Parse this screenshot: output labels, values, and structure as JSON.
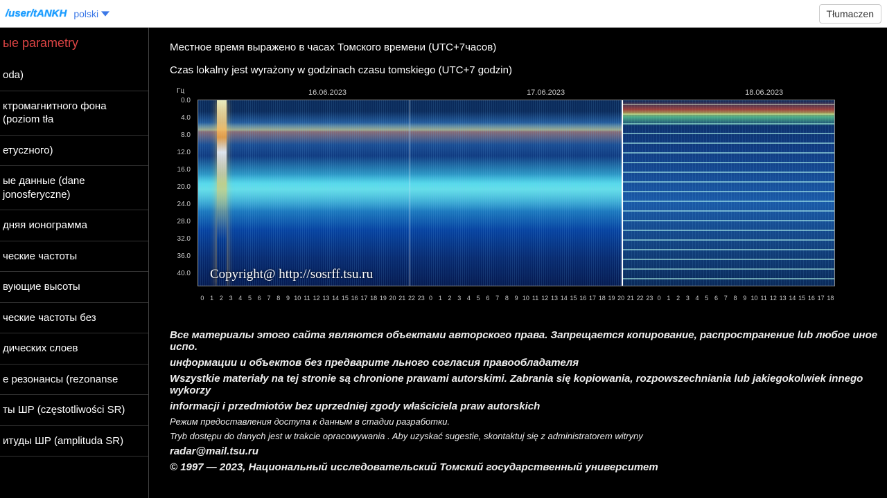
{
  "topbar": {
    "url_fragment": "/user/tANKH",
    "language": "polski",
    "translate_button": "Tłumaczen"
  },
  "sidebar": {
    "title": "ые parametry",
    "items": [
      "oda)",
      "ктромагнитного фона (poziom tła",
      "етуczного)",
      "ые данные (dane jonosferyczne)",
      "дняя ионограмма",
      "ческие частоты",
      "вующие высоты",
      "ческие частоты без",
      "дических слоев",
      "e резонансы (rezonanse",
      "ты ШР (częstotliwości SR)",
      "итуды ШР (amplituda SR)"
    ]
  },
  "notes": {
    "ru": "Местное время выражено в часах Томского времени (UTC+7часов)",
    "pl": "Czas lokalny jest wyrażony w godzinach czasu tomskiego (UTC+7 godzin)"
  },
  "chart": {
    "y_unit": "Гц",
    "y_ticks": [
      "0.0",
      "4.0",
      "8.0",
      "12.0",
      "16.0",
      "20.0",
      "24.0",
      "28.0",
      "32.0",
      "36.0",
      "40.0"
    ],
    "dates": [
      "16.06.2023",
      "17.06.2023",
      "18.06.2023"
    ],
    "x_hours_per_day": [
      "0",
      "1",
      "2",
      "3",
      "4",
      "5",
      "6",
      "7",
      "8",
      "9",
      "10",
      "11",
      "12",
      "13",
      "14",
      "15",
      "16",
      "17",
      "18",
      "19",
      "20",
      "21",
      "22",
      "23"
    ],
    "day3_x_hours": [
      "0",
      "1",
      "2",
      "3",
      "4",
      "5",
      "6",
      "7",
      "8",
      "9",
      "10",
      "11",
      "12",
      "13",
      "14",
      "15",
      "16",
      "17",
      "18"
    ],
    "overlay_text": "Copyright@ http://sosrff.tsu.ru",
    "colors": {
      "background": "#000000",
      "plot_bg": "#001a3f",
      "spectro_low": "#051a50",
      "spectro_mid": "#1a5aa8",
      "spectro_high": "#3cc7e8",
      "burst": "#ffd060",
      "axis_text": "#cccccc",
      "border": "#888888"
    },
    "ylim": [
      0,
      40
    ],
    "ytick_step": 4
  },
  "footer": {
    "ru_rights": "Все материалы этого сайта являются объектами авторского права. Запрещается копирование, распространение lub любое иное испо.",
    "ru_rights2": "информации и объектов без предварите льного согласия правообладателя",
    "pl_rights": "Wszystkie materiały na tej stronie są chronione prawami autorskimi. Zabrania się kopiowania, rozpowszechniania lub jakiegokolwiek innego wykorzy",
    "pl_rights2": "informacji i przedmiotów bez uprzedniej zgody właściciela praw autorskich",
    "ru_mode": "Режим предоставления доступа к данным в стадии разработки.",
    "pl_mode": "Tryb dostępu do danych jest w trakcie opracowywania . Aby uzyskać sugestie, skontaktuj się z administratorem witryny",
    "email": "radar@mail.tsu.ru",
    "copyright": "© 1997 — 2023, Национальный исследовательский Томский государственный университет"
  }
}
